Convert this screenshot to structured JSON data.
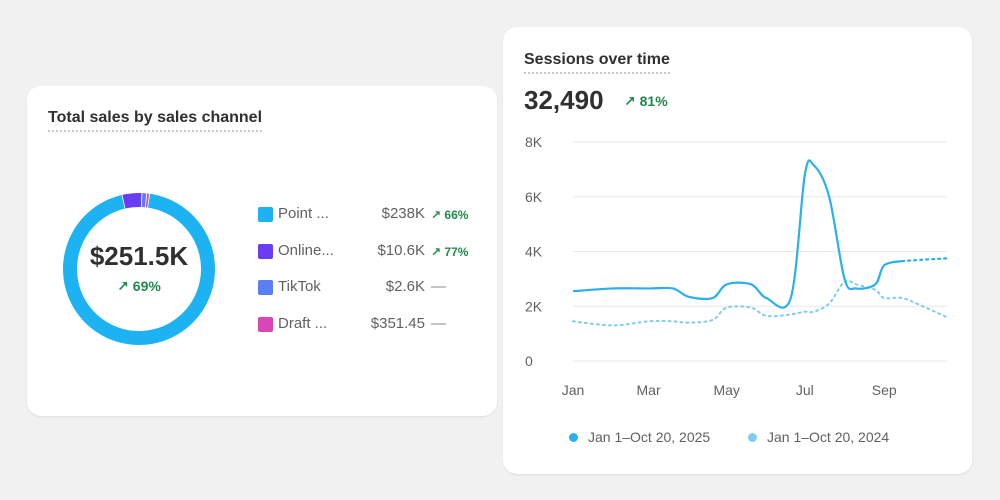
{
  "colors": {
    "point_of_sale": "#1db2f2",
    "online_store": "#6b3df2",
    "tiktok": "#5b7ef2",
    "draft_orders": "#d946b8",
    "current_line": "#2bb0ea",
    "previous_line": "#7fcdee",
    "positive": "#1f8a4c"
  },
  "sales_card": {
    "title": "Total sales by sales channel",
    "center_value": "$251.5K",
    "center_change": "69%",
    "channels": [
      {
        "name": "Point ...",
        "value": "$238K",
        "change": "66%"
      },
      {
        "name": "Online...",
        "value": "$10.6K",
        "change": "77%"
      },
      {
        "name": "TikTok",
        "value": "$2.6K",
        "change": "—"
      },
      {
        "name": "Draft ...",
        "value": "$351.45",
        "change": "—"
      }
    ]
  },
  "sessions_card": {
    "title": "Sessions over time",
    "total": "32,490",
    "change": "81%",
    "legend": {
      "current": "Jan 1–Oct 20, 2025",
      "previous": "Jan 1–Oct 20, 2024"
    }
  },
  "chart_data": [
    {
      "type": "pie",
      "title": "Total sales by sales channel",
      "labels": [
        "Point ...",
        "Online...",
        "TikTok",
        "Draft ..."
      ],
      "values": [
        238000,
        10600,
        2600,
        351.45
      ],
      "center_label": "$251.5K"
    },
    {
      "type": "line",
      "title": "Sessions over time",
      "x_ticks": [
        "Jan",
        "Mar",
        "May",
        "Jul",
        "Sep"
      ],
      "y_ticks": [
        "0",
        "2K",
        "4K",
        "6K",
        "8K"
      ],
      "ylim": [
        0,
        8000
      ],
      "x": [
        "2025-01-01",
        "2025-02-01",
        "2025-03-01",
        "2025-03-20",
        "2025-04-01",
        "2025-04-20",
        "2025-05-01",
        "2025-05-20",
        "2025-06-01",
        "2025-06-20",
        "2025-07-01",
        "2025-07-08",
        "2025-07-20",
        "2025-08-01",
        "2025-08-10",
        "2025-08-25",
        "2025-09-01",
        "2025-09-15",
        "2025-10-01",
        "2025-10-20"
      ],
      "series": [
        {
          "name": "Jan 1–Oct 20, 2025",
          "style": "solid",
          "values": [
            2550,
            2650,
            2650,
            2650,
            2350,
            2300,
            2800,
            2800,
            2300,
            2300,
            6800,
            7150,
            6000,
            3000,
            2650,
            2800,
            3500,
            3650,
            3700,
            3750
          ]
        },
        {
          "name": "Jan 1–Oct 20, 2024",
          "style": "dotted",
          "values": [
            1450,
            1300,
            1450,
            1450,
            1400,
            1500,
            1950,
            1950,
            1650,
            1700,
            1800,
            1800,
            2100,
            2900,
            2800,
            2600,
            2300,
            2300,
            2000,
            1600
          ]
        }
      ]
    }
  ]
}
